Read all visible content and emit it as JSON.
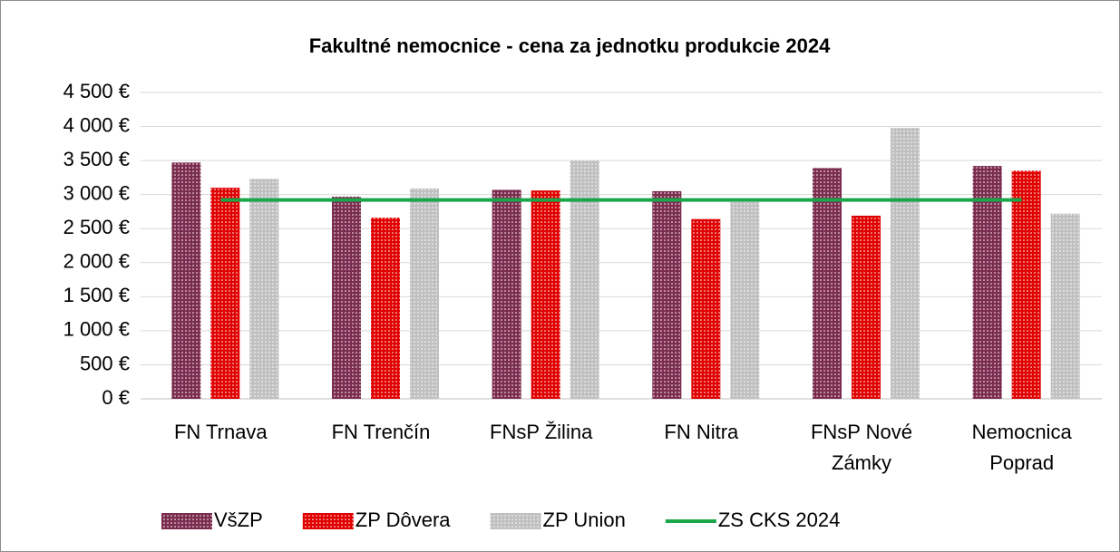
{
  "chart_data": {
    "type": "bar",
    "title": "Fakultné nemocnice - cena za jednotku produkcie 2024",
    "categories": [
      "FN Trnava",
      "FN Trenčín",
      "FNsP Žilina",
      "FN Nitra",
      "FNsP Nové Zámky",
      "Nemocnica Poprad"
    ],
    "series": [
      {
        "name": "VšZP",
        "color": "#7b2c4f",
        "values": [
          3470,
          2970,
          3070,
          3050,
          3390,
          3420
        ]
      },
      {
        "name": "ZP Dôvera",
        "color": "#e00000",
        "values": [
          3100,
          2660,
          3060,
          2640,
          2690,
          3350
        ]
      },
      {
        "name": "ZP Union",
        "color": "#c0c0c0",
        "values": [
          3230,
          3090,
          3500,
          2890,
          3980,
          2720
        ]
      },
      {
        "name": "ZS CKS 2024",
        "color": "#1aa64a",
        "type": "line",
        "values": [
          2920,
          2920,
          2920,
          2920,
          2920,
          2920
        ]
      }
    ],
    "ylim": [
      0,
      4500
    ],
    "yticks": [
      {
        "value": 0,
        "label": "0 €"
      },
      {
        "value": 500,
        "label": "500 €"
      },
      {
        "value": 1000,
        "label": "1 000 €"
      },
      {
        "value": 1500,
        "label": "1 500 €"
      },
      {
        "value": 2000,
        "label": "2 000 €"
      },
      {
        "value": 2500,
        "label": "2 500 €"
      },
      {
        "value": 3000,
        "label": "3 000 €"
      },
      {
        "value": 3500,
        "label": "3 500 €"
      },
      {
        "value": 4000,
        "label": "4 000 €"
      },
      {
        "value": 4500,
        "label": "4 500 €"
      }
    ],
    "grid": true,
    "legend": "bottom"
  }
}
